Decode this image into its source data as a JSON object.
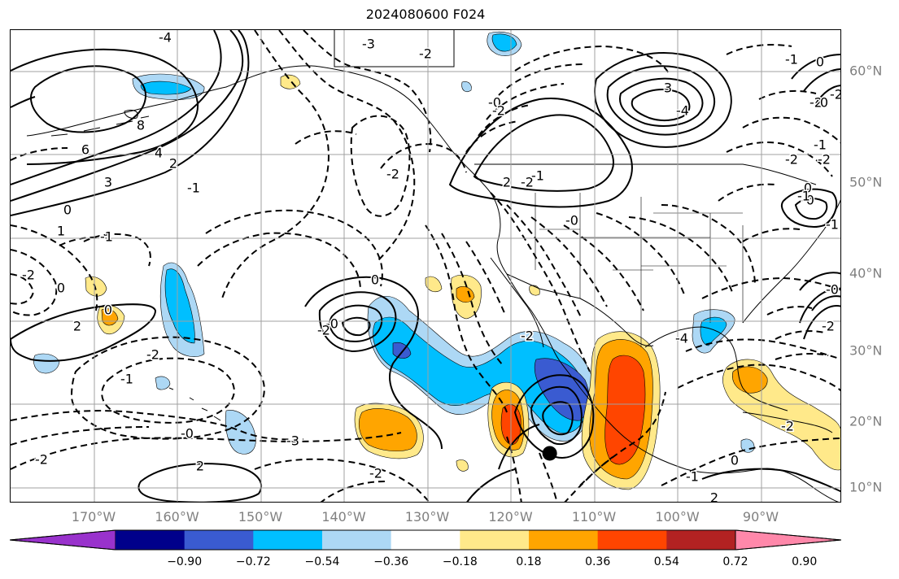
{
  "title": "2024080600 F024",
  "lon_labels": [
    "170°W",
    "160°W",
    "150°W",
    "140°W",
    "130°W",
    "120°W",
    "110°W",
    "100°W",
    "90°W"
  ],
  "lat_labels": [
    "60°N",
    "50°N",
    "40°N",
    "30°N",
    "20°N",
    "10°N"
  ],
  "colorbar": {
    "tick_labels": [
      "−0.90",
      "−0.72",
      "−0.54",
      "−0.36",
      "−0.18",
      "0.18",
      "0.36",
      "0.54",
      "0.72",
      "0.90"
    ],
    "colors": [
      "#9932cc",
      "#00008b",
      "#3a5bd1",
      "#00bfff",
      "#add8f5",
      "#ffffff",
      "#ffe98a",
      "#ffa500",
      "#ff4500",
      "#b22222",
      "#ff88aa"
    ]
  },
  "contour_labels": [
    "-4",
    "-3",
    "8",
    "6",
    "4",
    "3",
    "2",
    "-2",
    "-1",
    "0",
    "1",
    "-2",
    "0",
    "-1",
    "2",
    "-2",
    "0",
    "-1",
    "-0",
    "-3",
    "-2",
    "-2",
    "2",
    "-0",
    "-2",
    "0",
    "-2",
    "3",
    "-4",
    "-2",
    "-0",
    "-2",
    "-1",
    "-2",
    "2",
    "-1",
    "-0",
    "-0",
    "-2",
    "-4",
    "-1",
    "0",
    "-2",
    "2",
    "-2",
    "-0",
    "-1",
    "0",
    "-2",
    "-2",
    "0",
    "-1",
    "0",
    "-1",
    "-2"
  ],
  "marker": {
    "lon": -115.4,
    "lat": 15.3,
    "color": "#000000"
  }
}
